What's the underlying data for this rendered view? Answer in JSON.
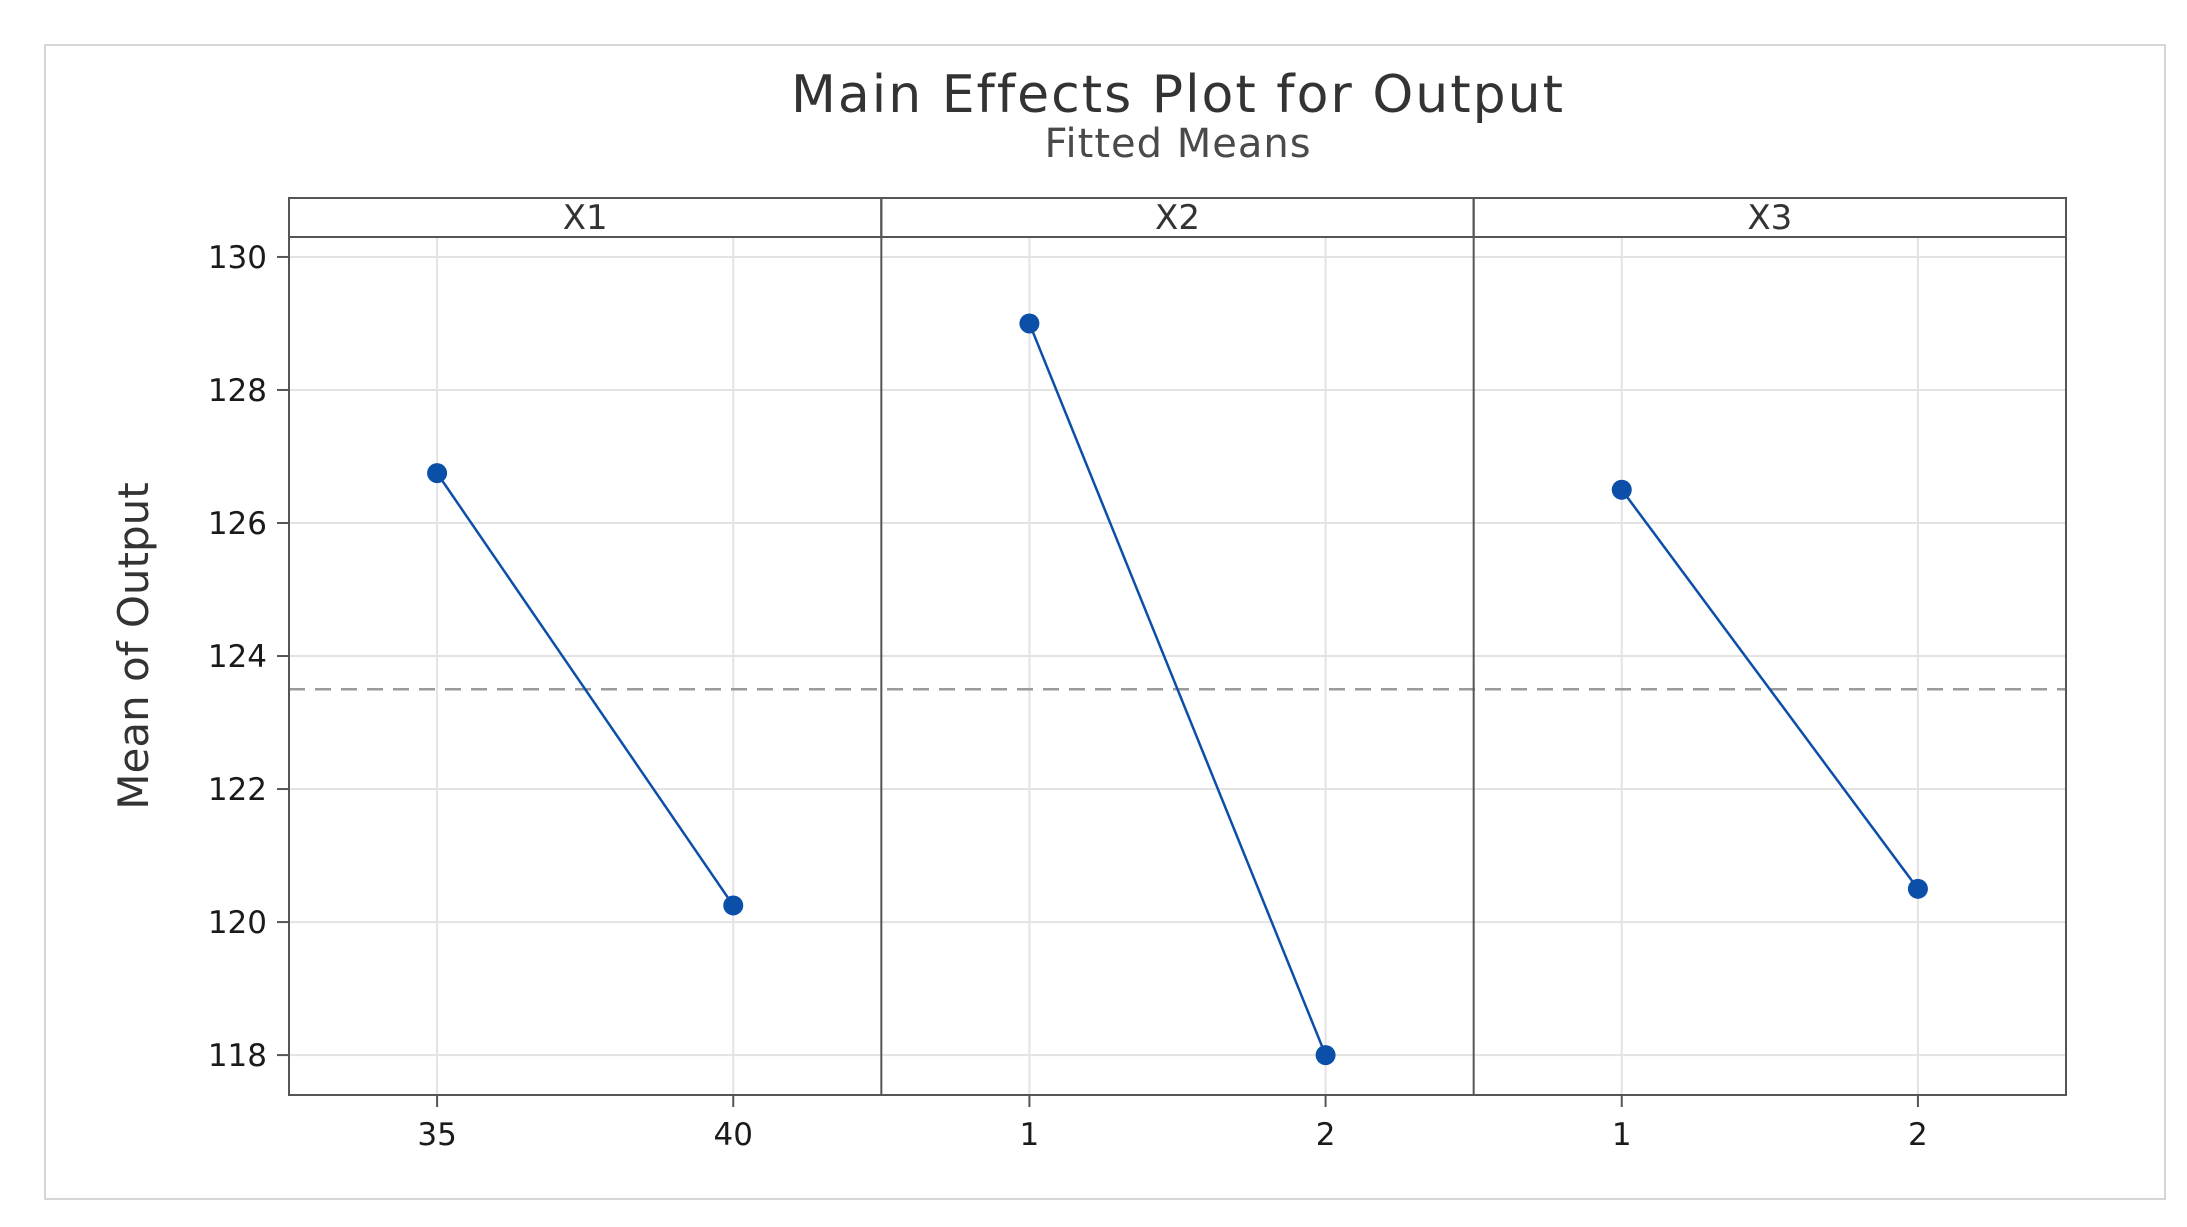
{
  "chart_data": {
    "type": "line",
    "title": "Main Effects Plot for Output",
    "subtitle": "Fitted Means",
    "ylabel": "Mean of Output",
    "ylim": [
      117.4,
      130.3
    ],
    "y_ticks": [
      "118",
      "120",
      "122",
      "124",
      "126",
      "128",
      "130"
    ],
    "reference_line": 123.5,
    "grid": true,
    "line_color": "#0b4fa8",
    "grid_color": "#e3e3e3",
    "panels": [
      {
        "label": "X1",
        "categories": [
          "35",
          "40"
        ],
        "values": [
          126.75,
          120.25
        ]
      },
      {
        "label": "X2",
        "categories": [
          "1",
          "2"
        ],
        "values": [
          129.0,
          118.0
        ]
      },
      {
        "label": "X3",
        "categories": [
          "1",
          "2"
        ],
        "values": [
          126.5,
          120.5
        ]
      }
    ]
  }
}
